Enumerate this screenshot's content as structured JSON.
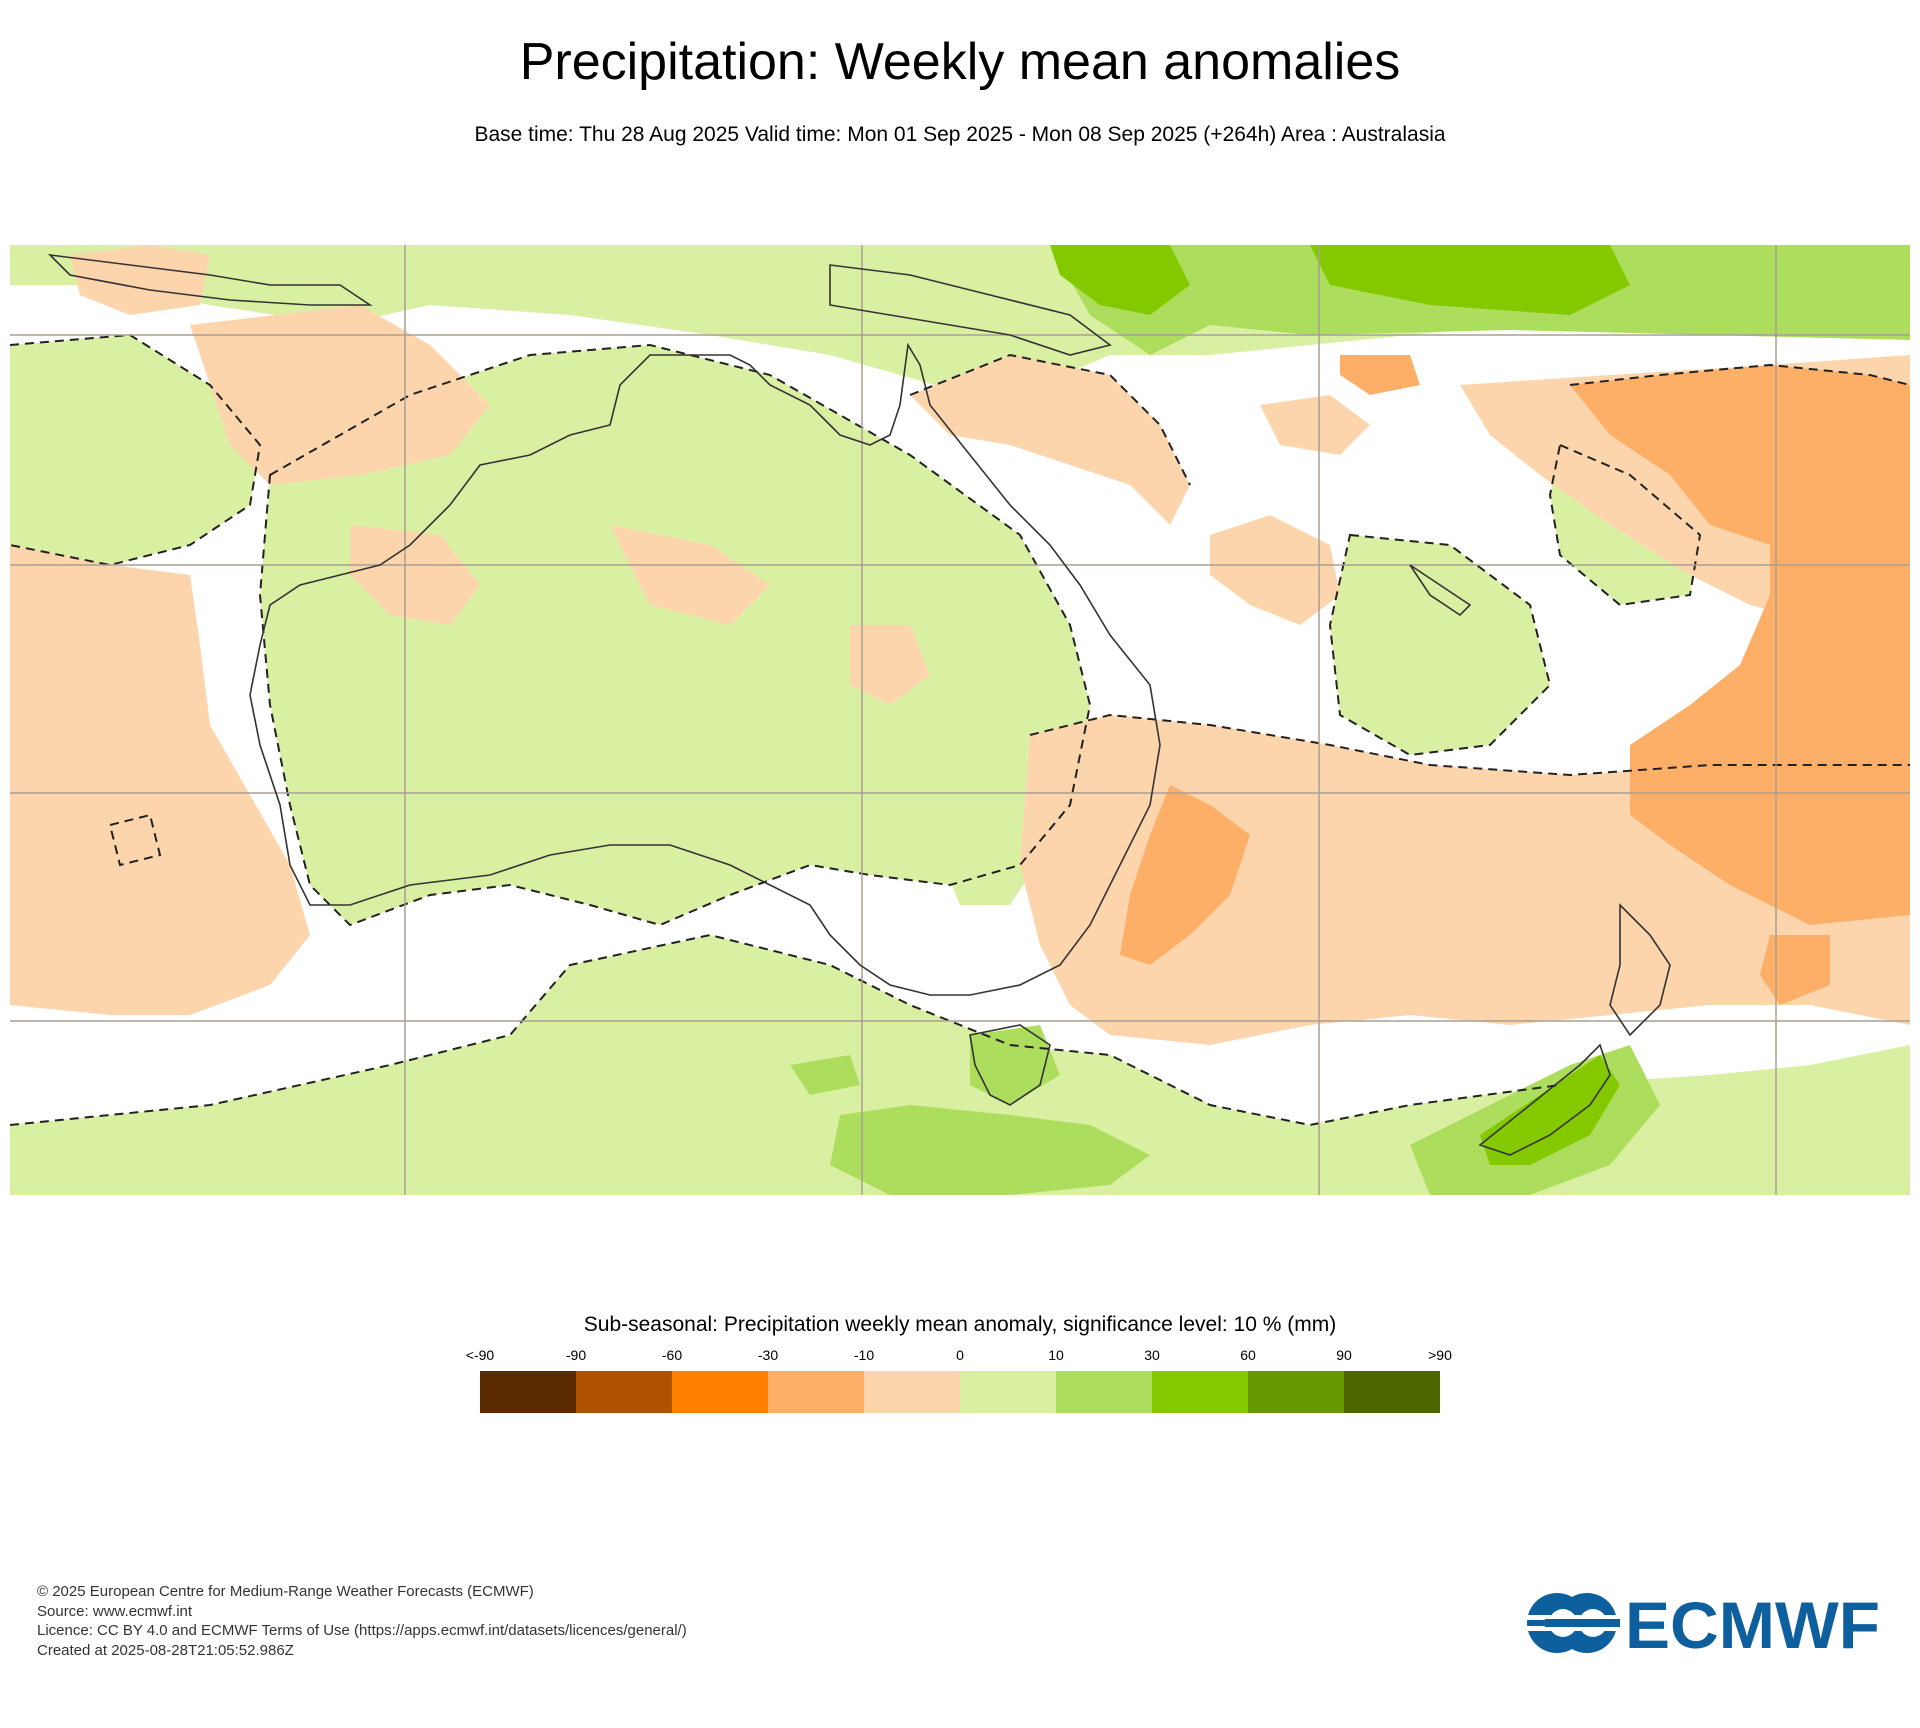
{
  "header": {
    "title": "Precipitation: Weekly mean anomalies",
    "subtitle": "Base time: Thu 28 Aug 2025 Valid time: Mon 01 Sep 2025 - Mon 08 Sep 2025 (+264h) Area : Australasia"
  },
  "map": {
    "area": "Australasia",
    "colors": {
      "light_green": "#d9f0a3",
      "mid_green": "#addd5c",
      "green": "#84c900",
      "light_orange": "#fdd5ad",
      "orange": "#fdaf67",
      "coast": "#333333",
      "grid": "#a89f94"
    }
  },
  "legend": {
    "title": "Sub-seasonal: Precipitation weekly mean anomaly, significance level: 10 % (mm)",
    "labels": [
      "<-90",
      "-90",
      "-60",
      "-30",
      "-10",
      "0",
      "10",
      "30",
      "60",
      "90",
      ">90"
    ],
    "colors": [
      "#5c2a00",
      "#b05300",
      "#ff7f00",
      "#fdaf67",
      "#fdd5ad",
      "#d9f0a3",
      "#addd5c",
      "#84c900",
      "#669900",
      "#4d6600"
    ]
  },
  "footer": {
    "line1": "© 2025 European Centre for Medium-Range Weather Forecasts (ECMWF)",
    "line2": "Source: www.ecmwf.int",
    "line3": "Licence: CC BY 4.0 and ECMWF Terms of Use (https://apps.ecmwf.int/datasets/licences/general/)",
    "line4": "Created at 2025-08-28T21:05:52.986Z"
  },
  "logo": {
    "text": "ECMWF",
    "color": "#0d5f9e"
  }
}
